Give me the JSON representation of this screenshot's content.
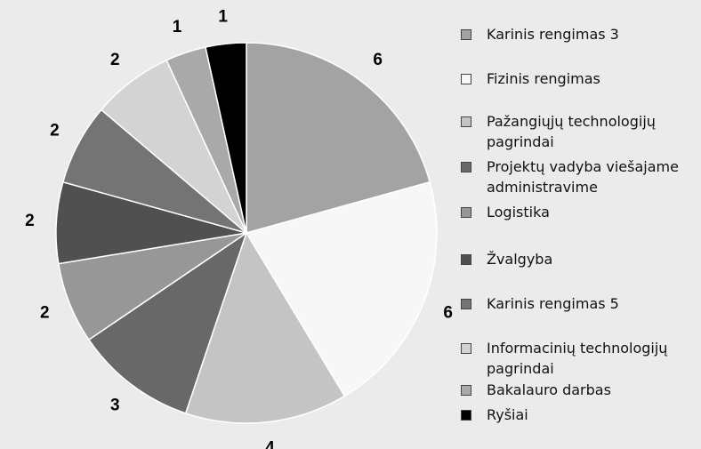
{
  "chart_data": {
    "type": "pie",
    "categories": [
      "Karinis rengimas 3",
      "Fizinis rengimas",
      "Pažangiųjų technologijų pagrindai",
      "Projektų vadyba viešajame administravime",
      "Logistika",
      "Žvalgyba",
      "Karinis rengimas 5",
      "Informacinių technologijų pagrindai",
      "Bakalauro darbas",
      "Ryšiai"
    ],
    "values": [
      6,
      6,
      4,
      3,
      2,
      2,
      2,
      2,
      1,
      1
    ],
    "colors": [
      "#a3a3a3",
      "#f7f7f7",
      "#c4c4c4",
      "#686868",
      "#979797",
      "#505050",
      "#747474",
      "#d3d3d3",
      "#a9a9a9",
      "#000000"
    ],
    "legend": "right"
  }
}
